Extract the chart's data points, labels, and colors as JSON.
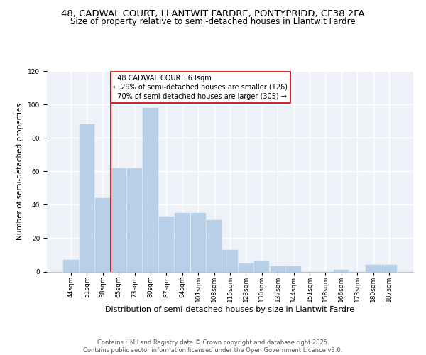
{
  "title1": "48, CADWAL COURT, LLANTWIT FARDRE, PONTYPRIDD, CF38 2FA",
  "title2": "Size of property relative to semi-detached houses in Llantwit Fardre",
  "xlabel": "Distribution of semi-detached houses by size in Llantwit Fardre",
  "ylabel": "Number of semi-detached properties",
  "categories": [
    "44sqm",
    "51sqm",
    "58sqm",
    "65sqm",
    "73sqm",
    "80sqm",
    "87sqm",
    "94sqm",
    "101sqm",
    "108sqm",
    "115sqm",
    "123sqm",
    "130sqm",
    "137sqm",
    "144sqm",
    "151sqm",
    "158sqm",
    "166sqm",
    "173sqm",
    "180sqm",
    "187sqm"
  ],
  "values": [
    7,
    88,
    44,
    62,
    62,
    98,
    33,
    35,
    35,
    31,
    13,
    5,
    6,
    3,
    3,
    0,
    0,
    1,
    0,
    4,
    4
  ],
  "bar_color": "#b8cfe8",
  "property_label": "48 CADWAL COURT: 63sqm",
  "pct_smaller": 29,
  "pct_larger": 70,
  "count_smaller": 126,
  "count_larger": 305,
  "annotation_box_color": "#cc0000",
  "vline_color": "#cc0000",
  "vline_x": 2.5,
  "ylim": [
    0,
    120
  ],
  "yticks": [
    0,
    20,
    40,
    60,
    80,
    100,
    120
  ],
  "background_color": "#eef2f8",
  "grid_color": "#ffffff",
  "footer_text": "Contains HM Land Registry data © Crown copyright and database right 2025.\nContains public sector information licensed under the Open Government Licence v3.0.",
  "title1_fontsize": 9.5,
  "title2_fontsize": 8.5,
  "xlabel_fontsize": 8,
  "ylabel_fontsize": 7.5,
  "tick_fontsize": 6.5,
  "annotation_fontsize": 7,
  "footer_fontsize": 6
}
